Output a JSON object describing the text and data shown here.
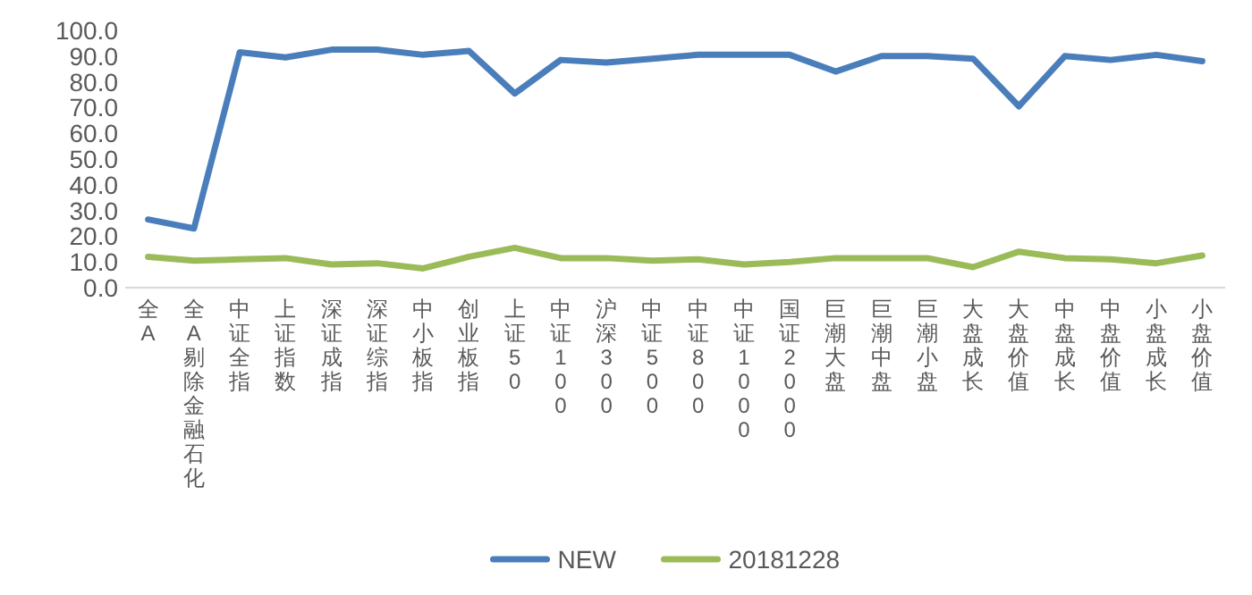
{
  "chart_data": {
    "type": "line",
    "categories": [
      "全A",
      "全A剔除金融石化",
      "中证全指",
      "上证指数",
      "深证成指",
      "深证综指",
      "中小板指",
      "创业板指",
      "上证50",
      "中证100",
      "沪深300",
      "中证500",
      "中证800",
      "中证1000",
      "国证2000",
      "巨潮大盘",
      "巨潮中盘",
      "巨潮小盘",
      "大盘成长",
      "大盘价值",
      "中盘成长",
      "中盘价值",
      "小盘成长",
      "小盘价值"
    ],
    "series": [
      {
        "name": "NEW",
        "color": "#4a7ebb",
        "values": [
          26.5,
          23,
          91.5,
          89.5,
          92.5,
          92.5,
          90.5,
          92,
          75.5,
          88.5,
          87.5,
          89,
          90.5,
          90.5,
          90.5,
          84,
          90,
          90,
          89,
          70.5,
          90,
          88.5,
          90.5,
          88
        ]
      },
      {
        "name": "20181228",
        "color": "#9bbb59",
        "values": [
          12,
          10.5,
          11,
          11.5,
          9,
          9.5,
          7.5,
          12,
          15.5,
          11.5,
          11.5,
          10.5,
          11,
          9,
          10,
          11.5,
          11.5,
          11.5,
          8,
          14,
          11.5,
          11,
          9.5,
          12.5
        ]
      }
    ],
    "ylim": [
      0,
      100
    ],
    "yticks": [
      {
        "value": 0,
        "label": "0.0"
      },
      {
        "value": 10,
        "label": "10.0"
      },
      {
        "value": 20,
        "label": "20.0"
      },
      {
        "value": 30,
        "label": "30.0"
      },
      {
        "value": 40,
        "label": "40.0"
      },
      {
        "value": 50,
        "label": "50.0"
      },
      {
        "value": 60,
        "label": "60.0"
      },
      {
        "value": 70,
        "label": "70.0"
      },
      {
        "value": 80,
        "label": "80.0"
      },
      {
        "value": 90,
        "label": "90.0"
      },
      {
        "value": 100,
        "label": "100.0"
      }
    ],
    "grid": false,
    "legend": "bottom",
    "marker": "none",
    "line_style": "solid"
  }
}
